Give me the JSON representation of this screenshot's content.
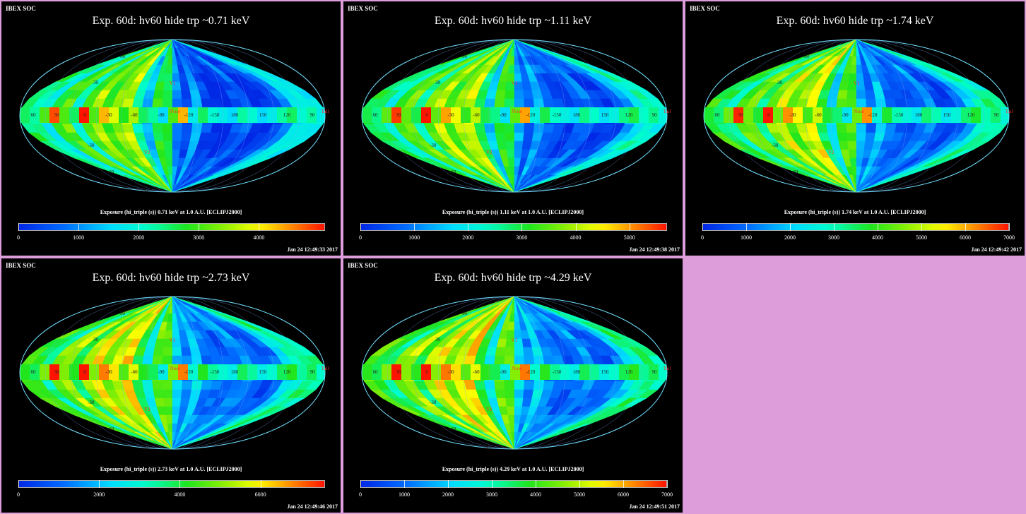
{
  "org_label": "IBEX SOC",
  "panels": [
    {
      "title": "Exp.   60d: hv60 hide trp ~0.71 keV",
      "colorbar_label": "Exposure (hi_triple (s))  0.71 keV at 1.0 A.U. [ECLIPJ2000]",
      "ticks": [
        "0",
        "1000",
        "2000",
        "3000",
        "4000"
      ],
      "cbar_max": 5100,
      "timestamp": "Jan 24 12:49:33 2017"
    },
    {
      "title": "Exp.   60d: hv60 hide trp ~1.11 keV",
      "colorbar_label": "Exposure (hi_triple (s))  1.11 keV at 1.0 A.U. [ECLIPJ2000]",
      "ticks": [
        "0",
        "1000",
        "2000",
        "3000",
        "4000",
        "5000"
      ],
      "cbar_max": 5700,
      "timestamp": "Jan 24 12:49:38 2017"
    },
    {
      "title": "Exp.   60d: hv60 hide trp ~1.74 keV",
      "colorbar_label": "Exposure (hi_triple (s))  1.74 keV at 1.0 A.U. [ECLIPJ2000]",
      "ticks": [
        "0",
        "1000",
        "2000",
        "3000",
        "4000",
        "5000",
        "6000",
        "7000"
      ],
      "cbar_max": 7000,
      "timestamp": "Jan 24 12:49:42 2017"
    },
    {
      "title": "Exp.   60d: hv60 hide trp ~2.73 keV",
      "colorbar_label": "Exposure (hi_triple (s))  2.73 keV at 1.0 A.U. [ECLIPJ2000]",
      "ticks": [
        "0",
        "2000",
        "4000",
        "6000"
      ],
      "cbar_max": 7600,
      "timestamp": "Jan 24 12:49:46 2017"
    },
    {
      "title": "Exp.   60d: hv60 hide trp ~4.29 keV",
      "colorbar_label": "Exposure (hi_triple (s))  4.29 keV at 1.0 A.U. [ECLIPJ2000]",
      "ticks": [
        "0",
        "1000",
        "2000",
        "3000",
        "4000",
        "5000",
        "6000",
        "7000"
      ],
      "cbar_max": 7000,
      "timestamp": "Jan 24 12:49:51 2017"
    }
  ],
  "map_labels": {
    "lon_labels": [
      "60",
      "30",
      "0",
      "-30",
      "-60",
      "-90",
      "-120",
      "-150",
      "180",
      "150",
      "120",
      "90"
    ],
    "lat_labels": [
      "60",
      "30",
      "-30",
      "-60",
      "-90"
    ],
    "markers": [
      "V1",
      "V2",
      "Nose",
      "Tail"
    ]
  },
  "colors": {
    "background": "#dd9ddb",
    "panel": "#000000",
    "label_red": "#ff3030"
  }
}
